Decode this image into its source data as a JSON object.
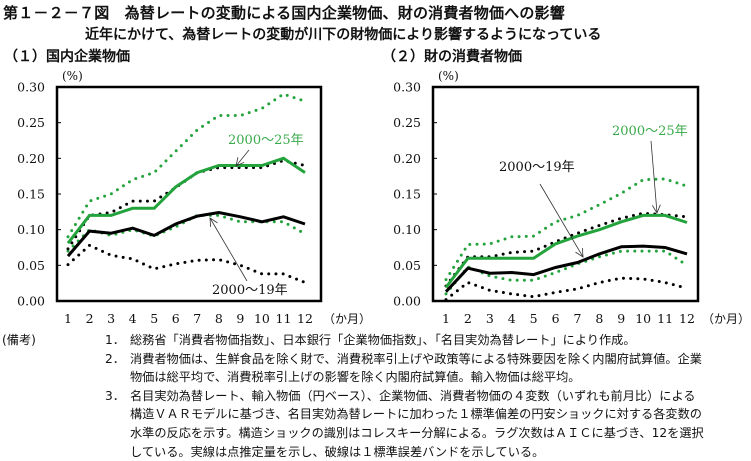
{
  "figure": {
    "title": "第１－２－７図　為替レートの変動による国内企業物価、財の消費者物価への影響",
    "subtitle": "近年にかけて、為替レートの変動が川下の財物価により影響するようになっている"
  },
  "colors": {
    "green": "#23a33c",
    "green_text": "#3aaa4a",
    "black": "#000000",
    "arrow": "#333333"
  },
  "chart_data": [
    {
      "type": "line",
      "title": "（１）国内企業物価",
      "ylabel": "(%)",
      "xlabel": "（か月）",
      "categories": [
        "1",
        "2",
        "3",
        "4",
        "5",
        "6",
        "7",
        "8",
        "9",
        "10",
        "11",
        "12"
      ],
      "ylim": [
        0,
        0.3
      ],
      "yticks": [
        "0.00",
        "0.05",
        "0.10",
        "0.15",
        "0.20",
        "0.25",
        "0.30"
      ],
      "grid": false,
      "series": [
        {
          "name": "2000〜25年 (点推定)",
          "color": "green",
          "style": "solid",
          "values": [
            0.081,
            0.12,
            0.12,
            0.13,
            0.13,
            0.16,
            0.18,
            0.19,
            0.19,
            0.19,
            0.2,
            0.18
          ]
        },
        {
          "name": "2000〜25年 (+1標準誤差)",
          "color": "green",
          "style": "dotted",
          "values": [
            0.09,
            0.14,
            0.15,
            0.17,
            0.18,
            0.21,
            0.24,
            0.26,
            0.26,
            0.27,
            0.29,
            0.28
          ]
        },
        {
          "name": "2000〜25年 (-1標準誤差)",
          "color": "green",
          "style": "dotted",
          "values": [
            0.07,
            0.1,
            0.092,
            0.1,
            0.091,
            0.104,
            0.12,
            0.12,
            0.111,
            0.111,
            0.111,
            0.094
          ]
        },
        {
          "name": "2000〜19年 (点推定)",
          "color": "black",
          "style": "solid",
          "values": [
            0.063,
            0.098,
            0.095,
            0.102,
            0.092,
            0.108,
            0.119,
            0.124,
            0.118,
            0.111,
            0.118,
            0.108
          ]
        },
        {
          "name": "2000〜19年 (+1標準誤差)",
          "color": "black",
          "style": "dotted",
          "values": [
            0.073,
            0.12,
            0.124,
            0.14,
            0.14,
            0.159,
            0.18,
            0.187,
            0.187,
            0.187,
            0.197,
            0.19
          ]
        },
        {
          "name": "2000〜19年 (-1標準誤差)",
          "color": "black",
          "style": "dotted",
          "values": [
            0.051,
            0.078,
            0.064,
            0.059,
            0.045,
            0.052,
            0.057,
            0.058,
            0.05,
            0.038,
            0.038,
            0.026
          ]
        }
      ],
      "annotations": [
        {
          "text": "2000〜25年",
          "color": "green",
          "target_month": 9,
          "target_value": 0.19
        },
        {
          "text": "2000〜19年",
          "color": "black",
          "target_month": 7.6,
          "target_value": 0.12
        }
      ]
    },
    {
      "type": "line",
      "title": "（２）財の消費者物価",
      "ylabel": "(%)",
      "xlabel": "（か月）",
      "categories": [
        "1",
        "2",
        "3",
        "4",
        "5",
        "6",
        "7",
        "8",
        "9",
        "10",
        "11",
        "12"
      ],
      "ylim": [
        0,
        0.3
      ],
      "yticks": [
        "0.00",
        "0.05",
        "0.10",
        "0.15",
        "0.20",
        "0.25",
        "0.30"
      ],
      "grid": false,
      "series": [
        {
          "name": "2000〜25年 (点推定)",
          "color": "green",
          "style": "solid",
          "values": [
            0.019,
            0.06,
            0.06,
            0.06,
            0.06,
            0.08,
            0.091,
            0.1,
            0.111,
            0.12,
            0.12,
            0.11
          ]
        },
        {
          "name": "2000〜25年 (+1標準誤差)",
          "color": "green",
          "style": "dotted",
          "values": [
            0.03,
            0.079,
            0.08,
            0.09,
            0.091,
            0.111,
            0.12,
            0.135,
            0.151,
            0.17,
            0.171,
            0.161
          ]
        },
        {
          "name": "2000〜25年 (-1標準誤差)",
          "color": "green",
          "style": "dotted",
          "values": [
            0.01,
            0.048,
            0.035,
            0.029,
            0.029,
            0.04,
            0.052,
            0.062,
            0.07,
            0.07,
            0.07,
            0.05
          ]
        },
        {
          "name": "2000〜19年 (点推定)",
          "color": "black",
          "style": "solid",
          "values": [
            0.013,
            0.046,
            0.039,
            0.04,
            0.037,
            0.047,
            0.054,
            0.066,
            0.076,
            0.077,
            0.075,
            0.066
          ]
        },
        {
          "name": "2000〜19年 (+1標準誤差)",
          "color": "black",
          "style": "dotted",
          "values": [
            0.021,
            0.062,
            0.062,
            0.068,
            0.07,
            0.083,
            0.095,
            0.106,
            0.116,
            0.123,
            0.121,
            0.118
          ]
        },
        {
          "name": "2000〜19年 (-1標準誤差)",
          "color": "black",
          "style": "dotted",
          "values": [
            0.002,
            0.026,
            0.015,
            0.01,
            0.006,
            0.012,
            0.017,
            0.026,
            0.032,
            0.031,
            0.026,
            0.018
          ]
        }
      ],
      "annotations": [
        {
          "text": "2000〜19年",
          "color": "black",
          "target_month": 7.3,
          "target_value": 0.055
        },
        {
          "text": "2000〜25年",
          "color": "green",
          "target_month": 10.7,
          "target_value": 0.12
        }
      ]
    }
  ],
  "notes": {
    "head": "(備考)",
    "items": [
      {
        "num": "1．",
        "lines": [
          "総務省「消費者物価指数」、日本銀行「企業物価指数」、「名目実効為替レート」により作成。"
        ]
      },
      {
        "num": "2．",
        "lines": [
          "消費者物価は、生鮮食品を除く財で、消費税率引上げや政策等による特殊要因を除く内閣府試算値。企業",
          "物価は総平均で、消費税率引上げの影響を除く内閣府試算値。輸入物価は総平均。"
        ]
      },
      {
        "num": "3．",
        "lines": [
          "名目実効為替レート、輸入物価（円ベース）、企業物価、消費者物価の４変数（いずれも前月比）による",
          "構造ＶＡＲモデルに基づき、名目実効為替レートに加わった１標準偏差の円安ショックに対する各変数の",
          "水準の反応を示す。構造ショックの識別はコレスキー分解による。ラグ次数はＡＩＣに基づき、12を選択",
          "している。実線は点推定量を示し、破線は１標準誤差バンドを示している。"
        ]
      }
    ]
  }
}
